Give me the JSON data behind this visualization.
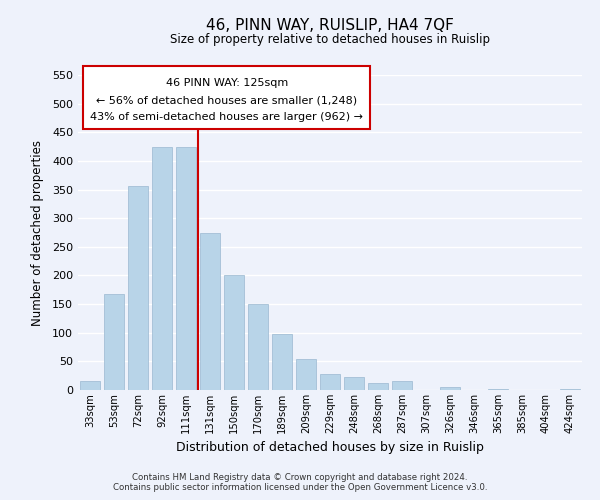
{
  "title": "46, PINN WAY, RUISLIP, HA4 7QF",
  "subtitle": "Size of property relative to detached houses in Ruislip",
  "xlabel": "Distribution of detached houses by size in Ruislip",
  "ylabel": "Number of detached properties",
  "bar_labels": [
    "33sqm",
    "53sqm",
    "72sqm",
    "92sqm",
    "111sqm",
    "131sqm",
    "150sqm",
    "170sqm",
    "189sqm",
    "209sqm",
    "229sqm",
    "248sqm",
    "268sqm",
    "287sqm",
    "307sqm",
    "326sqm",
    "346sqm",
    "365sqm",
    "385sqm",
    "404sqm",
    "424sqm"
  ],
  "bar_heights": [
    15,
    167,
    357,
    425,
    425,
    275,
    200,
    150,
    97,
    55,
    28,
    22,
    13,
    15,
    0,
    5,
    0,
    2,
    0,
    0,
    2
  ],
  "bar_color": "#b8d4e8",
  "bar_edge_color": "#9ab8d0",
  "vline_x_index": 5,
  "vline_color": "#cc0000",
  "ylim": [
    0,
    550
  ],
  "yticks": [
    0,
    50,
    100,
    150,
    200,
    250,
    300,
    350,
    400,
    450,
    500,
    550
  ],
  "ann_line1": "46 PINN WAY: 125sqm",
  "ann_line2": "← 56% of detached houses are smaller (1,248)",
  "ann_line3": "43% of semi-detached houses are larger (962) →",
  "footer_line1": "Contains HM Land Registry data © Crown copyright and database right 2024.",
  "footer_line2": "Contains public sector information licensed under the Open Government Licence v3.0.",
  "background_color": "#eef2fb",
  "grid_color": "#ffffff"
}
